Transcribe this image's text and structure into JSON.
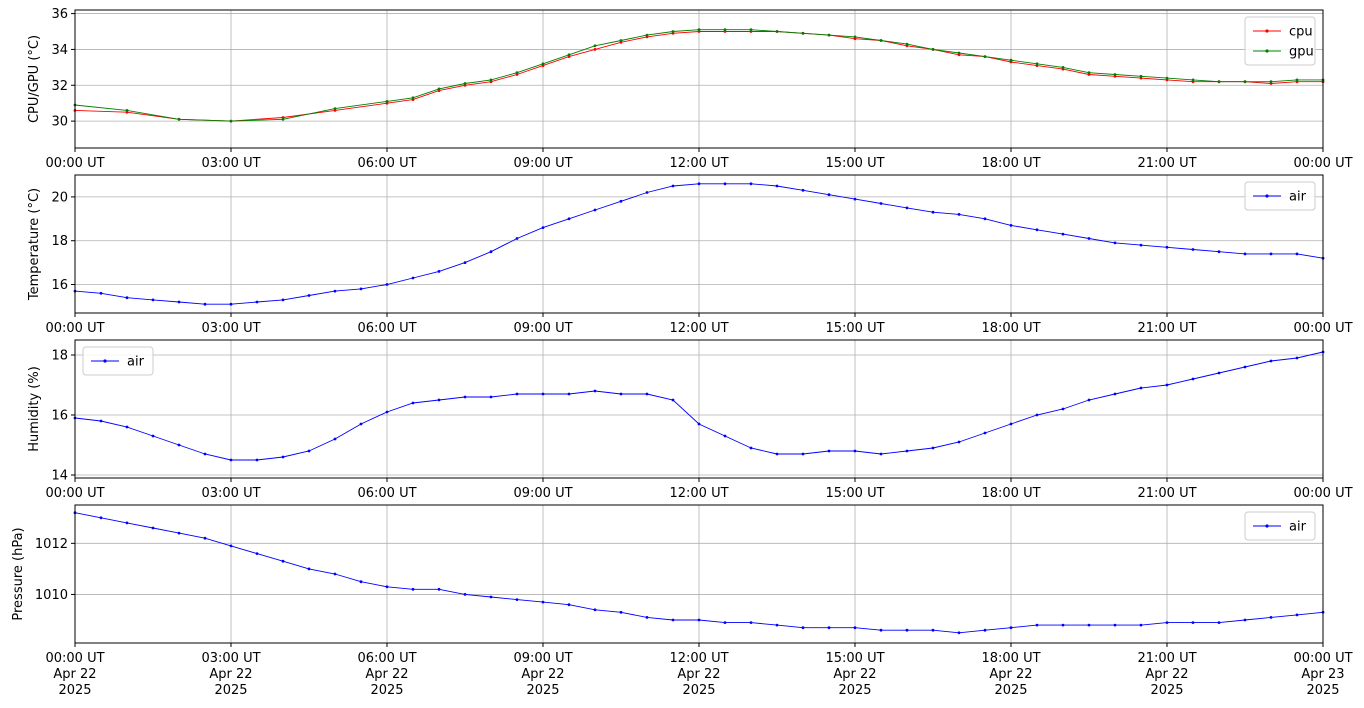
{
  "chart_data": [
    {
      "type": "line",
      "ylabel": "CPU/GPU (°C)",
      "ylim": [
        28.5,
        36.2
      ],
      "yticks": [
        30,
        32,
        34,
        36
      ],
      "xlim_hours": [
        0,
        24
      ],
      "grid": true,
      "legend_position": "top-right",
      "x_tick_labels": [
        "00:00 UT",
        "03:00 UT",
        "06:00 UT",
        "09:00 UT",
        "12:00 UT",
        "15:00 UT",
        "18:00 UT",
        "21:00 UT",
        "00:00 UT"
      ],
      "series": [
        {
          "name": "cpu",
          "color": "#ff0000",
          "x": [
            0,
            1,
            2,
            3,
            4,
            5,
            6,
            6.5,
            7,
            7.5,
            8,
            8.5,
            9,
            9.5,
            10,
            10.5,
            11,
            11.5,
            12,
            12.5,
            13,
            13.5,
            14,
            14.5,
            15,
            15.5,
            16,
            16.5,
            17,
            17.5,
            18,
            18.5,
            19,
            19.5,
            20,
            20.5,
            21,
            21.5,
            22,
            22.5,
            23,
            23.5,
            24
          ],
          "y": [
            30.6,
            30.5,
            30.1,
            30.0,
            30.2,
            30.6,
            31.0,
            31.2,
            31.7,
            32.0,
            32.2,
            32.6,
            33.1,
            33.6,
            34.0,
            34.4,
            34.7,
            34.9,
            35.0,
            35.0,
            35.0,
            35.0,
            34.9,
            34.8,
            34.6,
            34.5,
            34.2,
            34.0,
            33.7,
            33.6,
            33.3,
            33.1,
            32.9,
            32.6,
            32.5,
            32.4,
            32.3,
            32.2,
            32.2,
            32.2,
            32.1,
            32.2,
            32.2
          ]
        },
        {
          "name": "gpu",
          "color": "#008000",
          "x": [
            0,
            1,
            2,
            3,
            4,
            5,
            6,
            6.5,
            7,
            7.5,
            8,
            8.5,
            9,
            9.5,
            10,
            10.5,
            11,
            11.5,
            12,
            12.5,
            13,
            13.5,
            14,
            14.5,
            15,
            15.5,
            16,
            16.5,
            17,
            17.5,
            18,
            18.5,
            19,
            19.5,
            20,
            20.5,
            21,
            21.5,
            22,
            22.5,
            23,
            23.5,
            24
          ],
          "y": [
            30.9,
            30.6,
            30.1,
            30.0,
            30.1,
            30.7,
            31.1,
            31.3,
            31.8,
            32.1,
            32.3,
            32.7,
            33.2,
            33.7,
            34.2,
            34.5,
            34.8,
            35.0,
            35.1,
            35.1,
            35.1,
            35.0,
            34.9,
            34.8,
            34.7,
            34.5,
            34.3,
            34.0,
            33.8,
            33.6,
            33.4,
            33.2,
            33.0,
            32.7,
            32.6,
            32.5,
            32.4,
            32.3,
            32.2,
            32.2,
            32.2,
            32.3,
            32.3
          ]
        }
      ]
    },
    {
      "type": "line",
      "ylabel": "Temperature (°C)",
      "ylim": [
        14.7,
        21.0
      ],
      "yticks": [
        16,
        18,
        20
      ],
      "xlim_hours": [
        0,
        24
      ],
      "grid": true,
      "legend_position": "top-right",
      "x_tick_labels": [
        "00:00 UT",
        "03:00 UT",
        "06:00 UT",
        "09:00 UT",
        "12:00 UT",
        "15:00 UT",
        "18:00 UT",
        "21:00 UT",
        "00:00 UT"
      ],
      "series": [
        {
          "name": "air",
          "color": "#0000ff",
          "x": [
            0,
            0.5,
            1,
            1.5,
            2,
            2.5,
            3,
            3.5,
            4,
            4.5,
            5,
            5.5,
            6,
            6.5,
            7,
            7.5,
            8,
            8.5,
            9,
            9.5,
            10,
            10.5,
            11,
            11.5,
            12,
            12.5,
            13,
            13.5,
            14,
            14.5,
            15,
            15.5,
            16,
            16.5,
            17,
            17.5,
            18,
            18.5,
            19,
            19.5,
            20,
            20.5,
            21,
            21.5,
            22,
            22.5,
            23,
            23.5,
            24
          ],
          "y": [
            15.7,
            15.6,
            15.4,
            15.3,
            15.2,
            15.1,
            15.1,
            15.2,
            15.3,
            15.5,
            15.7,
            15.8,
            16.0,
            16.3,
            16.6,
            17.0,
            17.5,
            18.1,
            18.6,
            19.0,
            19.4,
            19.8,
            20.2,
            20.5,
            20.6,
            20.6,
            20.6,
            20.5,
            20.3,
            20.1,
            19.9,
            19.7,
            19.5,
            19.3,
            19.2,
            19.0,
            18.7,
            18.5,
            18.3,
            18.1,
            17.9,
            17.8,
            17.7,
            17.6,
            17.5,
            17.4,
            17.4,
            17.4,
            17.2
          ]
        }
      ]
    },
    {
      "type": "line",
      "ylabel": "Humidity (%)",
      "ylim": [
        13.9,
        18.5
      ],
      "yticks": [
        14,
        16,
        18
      ],
      "xlim_hours": [
        0,
        24
      ],
      "grid": true,
      "legend_position": "top-left",
      "x_tick_labels": [
        "00:00 UT",
        "03:00 UT",
        "06:00 UT",
        "09:00 UT",
        "12:00 UT",
        "15:00 UT",
        "18:00 UT",
        "21:00 UT",
        "00:00 UT"
      ],
      "series": [
        {
          "name": "air",
          "color": "#0000ff",
          "x": [
            0,
            0.5,
            1,
            1.5,
            2,
            2.5,
            3,
            3.5,
            4,
            4.5,
            5,
            5.5,
            6,
            6.5,
            7,
            7.5,
            8,
            8.5,
            9,
            9.5,
            10,
            10.5,
            11,
            11.5,
            12,
            12.5,
            13,
            13.5,
            14,
            14.5,
            15,
            15.5,
            16,
            16.5,
            17,
            17.5,
            18,
            18.5,
            19,
            19.5,
            20,
            20.5,
            21,
            21.5,
            22,
            22.5,
            23,
            23.5,
            24
          ],
          "y": [
            15.9,
            15.8,
            15.6,
            15.3,
            15.0,
            14.7,
            14.5,
            14.5,
            14.6,
            14.8,
            15.2,
            15.7,
            16.1,
            16.4,
            16.5,
            16.6,
            16.6,
            16.7,
            16.7,
            16.7,
            16.8,
            16.7,
            16.7,
            16.5,
            15.7,
            15.3,
            14.9,
            14.7,
            14.7,
            14.8,
            14.8,
            14.7,
            14.8,
            14.9,
            15.1,
            15.4,
            15.7,
            16.0,
            16.2,
            16.5,
            16.7,
            16.9,
            17.0,
            17.2,
            17.4,
            17.6,
            17.8,
            17.9,
            18.1
          ]
        }
      ]
    },
    {
      "type": "line",
      "ylabel": "Pressure (hPa)",
      "ylim": [
        1008.1,
        1013.5
      ],
      "yticks": [
        1010,
        1012
      ],
      "xlim_hours": [
        0,
        24
      ],
      "grid": true,
      "legend_position": "top-right",
      "x_tick_labels": [
        "00:00 UT\nApr 22\n2025",
        "03:00 UT\nApr 22\n2025",
        "06:00 UT\nApr 22\n2025",
        "09:00 UT\nApr 22\n2025",
        "12:00 UT\nApr 22\n2025",
        "15:00 UT\nApr 22\n2025",
        "18:00 UT\nApr 22\n2025",
        "21:00 UT\nApr 22\n2025",
        "00:00 UT\nApr 23\n2025"
      ],
      "series": [
        {
          "name": "air",
          "color": "#0000ff",
          "x": [
            0,
            0.5,
            1,
            1.5,
            2,
            2.5,
            3,
            3.5,
            4,
            4.5,
            5,
            5.5,
            6,
            6.5,
            7,
            7.5,
            8,
            8.5,
            9,
            9.5,
            10,
            10.5,
            11,
            11.5,
            12,
            12.5,
            13,
            13.5,
            14,
            14.5,
            15,
            15.5,
            16,
            16.5,
            17,
            17.5,
            18,
            18.5,
            19,
            19.5,
            20,
            20.5,
            21,
            21.5,
            22,
            22.5,
            23,
            23.5,
            24
          ],
          "y": [
            1013.2,
            1013.0,
            1012.8,
            1012.6,
            1012.4,
            1012.2,
            1011.9,
            1011.6,
            1011.3,
            1011.0,
            1010.8,
            1010.5,
            1010.3,
            1010.2,
            1010.2,
            1010.0,
            1009.9,
            1009.8,
            1009.7,
            1009.6,
            1009.4,
            1009.3,
            1009.1,
            1009.0,
            1009.0,
            1008.9,
            1008.9,
            1008.8,
            1008.7,
            1008.7,
            1008.7,
            1008.6,
            1008.6,
            1008.6,
            1008.5,
            1008.6,
            1008.7,
            1008.8,
            1008.8,
            1008.8,
            1008.8,
            1008.8,
            1008.9,
            1008.9,
            1008.9,
            1009.0,
            1009.1,
            1009.2,
            1009.3
          ]
        }
      ]
    }
  ]
}
